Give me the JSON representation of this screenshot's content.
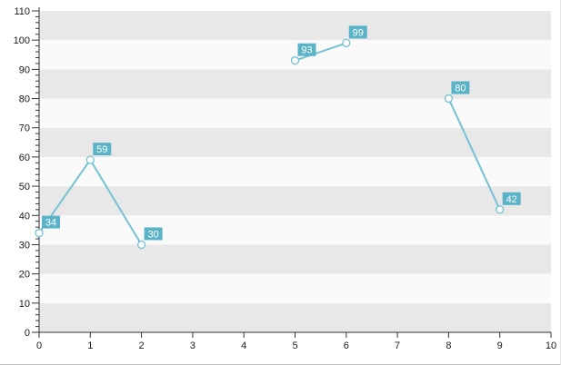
{
  "chart_data": {
    "type": "line",
    "title": "",
    "xlabel": "",
    "ylabel": "",
    "xlim": [
      0,
      10
    ],
    "ylim": [
      0,
      110
    ],
    "x_ticks": [
      "0",
      "1",
      "2",
      "3",
      "4",
      "5",
      "6",
      "7",
      "8",
      "9",
      "10"
    ],
    "y_ticks": [
      "0",
      "10",
      "20",
      "30",
      "40",
      "50",
      "60",
      "70",
      "80",
      "90",
      "100",
      "110"
    ],
    "grid": "alternating horizontal bands",
    "legend": "none",
    "colors": {
      "line": "#74c2d4",
      "label_bg": "#5bb3c8",
      "band_dark": "#e8e8e8",
      "band_light": "#fafafa"
    },
    "series": [
      {
        "segments": [
          [
            {
              "x": 0,
              "y": 34
            },
            {
              "x": 1,
              "y": 59
            },
            {
              "x": 2,
              "y": 30
            }
          ],
          [
            {
              "x": 5,
              "y": 93
            },
            {
              "x": 6,
              "y": 99
            }
          ],
          [
            {
              "x": 8,
              "y": 80
            },
            {
              "x": 9,
              "y": 42
            }
          ]
        ],
        "data_labels": [
          "34",
          "59",
          "30",
          "93",
          "99",
          "80",
          "42"
        ]
      }
    ]
  }
}
